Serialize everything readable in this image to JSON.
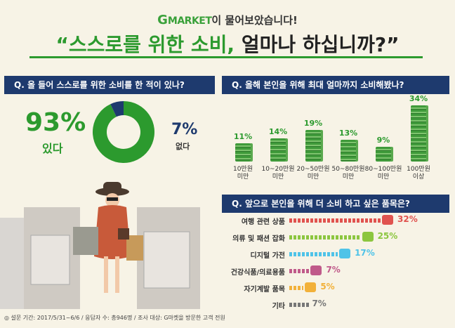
{
  "header": {
    "brand_g": "G",
    "brand_rest": "MARKET",
    "subtitle": "이 물어보았습니다!",
    "title_quote_open": "“",
    "title_green": "스스로를 위한 소비,",
    "title_dark": " 얼마나 하십니까?",
    "title_quote_close": "”"
  },
  "q1": {
    "question": "Q. 올 들어 스스로를 위한 소비를 한 적이 있나?",
    "yes_pct": "93%",
    "yes_label": "있다",
    "no_pct": "7%",
    "no_label": "없다"
  },
  "q2": {
    "question": "Q. 올해 본인을 위해 최대 얼마까지 소비해봤나?"
  },
  "q3": {
    "question": "Q. 앞으로 본인을 위해 더 소비 하고 싶은 품목은?"
  },
  "footnote": "◎ 설문 기간: 2017/5/31~6/6 / 응답자 수: 총946명 / 조사 대상: G마켓을 방문한 고객 전원",
  "colors": {
    "green": "#2c9a2e",
    "navy": "#1e3a6e",
    "red": "#e0534f",
    "lime": "#8cc63f",
    "sky": "#4fc3e8",
    "pink": "#c05a8a",
    "yellow": "#f2b13a",
    "grey": "#777777"
  },
  "chart_data": [
    {
      "type": "pie",
      "title": "Q. 올 들어 스스로를 위한 소비를 한 적이 있나?",
      "categories": [
        "있다",
        "없다"
      ],
      "values": [
        93,
        7
      ]
    },
    {
      "type": "bar",
      "title": "Q. 올해 본인을 위해 최대 얼마까지 소비해봤나?",
      "categories": [
        "10만원 미만",
        "10~20만원 미만",
        "20~50만원 미만",
        "50~80만원 미만",
        "80~100만원 미만",
        "100만원 이상"
      ],
      "category_lines": [
        [
          "10만원",
          "미만"
        ],
        [
          "10~20만원",
          "미만"
        ],
        [
          "20~50만원",
          "미만"
        ],
        [
          "50~80만원",
          "미만"
        ],
        [
          "80~100만원",
          "미만"
        ],
        [
          "100만원",
          "이상"
        ]
      ],
      "values": [
        11,
        14,
        19,
        13,
        9,
        34
      ],
      "value_labels": [
        "11%",
        "14%",
        "19%",
        "13%",
        "9%",
        "34%"
      ]
    },
    {
      "type": "bar",
      "orientation": "horizontal",
      "title": "Q. 앞으로 본인을 위해 더 소비 하고 싶은 품목은?",
      "categories": [
        "여행 관련 상품",
        "의류 및 패션 잡화",
        "디지털 가전",
        "건강식품/의료용품",
        "자기계발 품목",
        "기타"
      ],
      "values": [
        32,
        25,
        17,
        7,
        5,
        7
      ],
      "value_labels": [
        "32%",
        "25%",
        "17%",
        "7%",
        "5%",
        "7%"
      ],
      "icons": [
        "airplane-icon",
        "shirt-icon",
        "camera-icon",
        "pills-icon",
        "book-icon",
        ""
      ],
      "colors": [
        "#e0534f",
        "#8cc63f",
        "#4fc3e8",
        "#c05a8a",
        "#f2b13a",
        "#777777"
      ]
    }
  ]
}
